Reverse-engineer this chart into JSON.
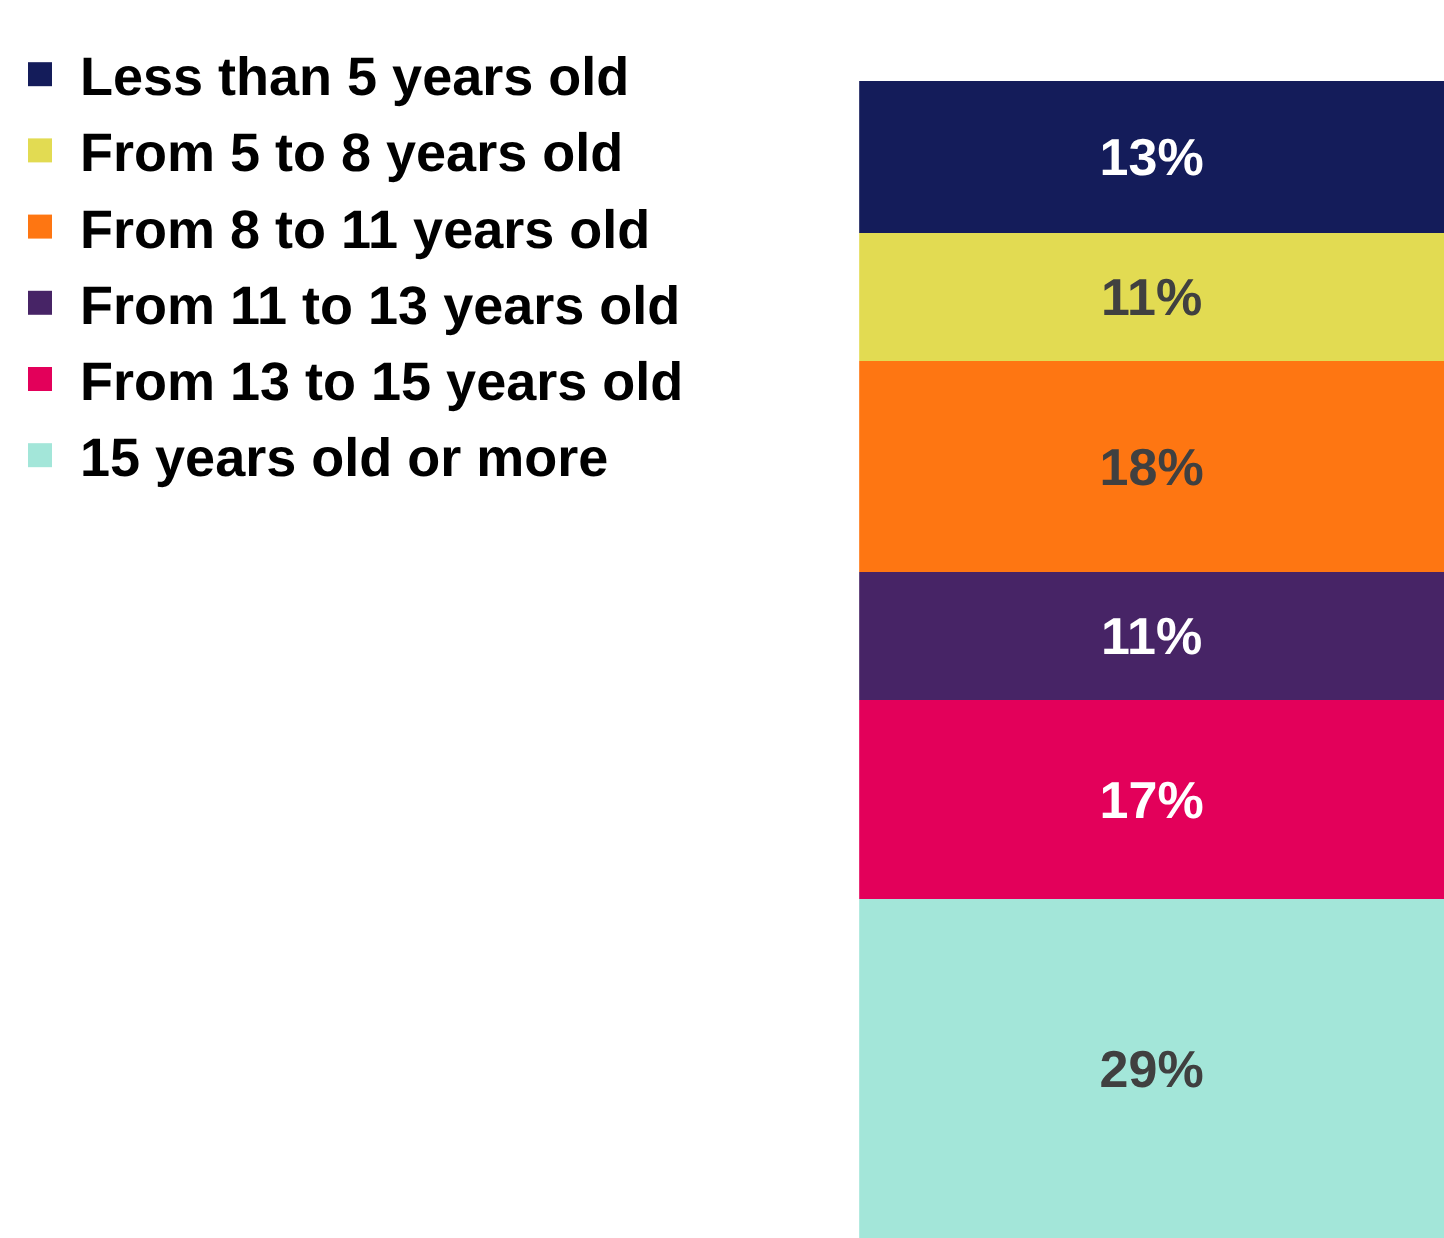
{
  "chart_data": {
    "type": "bar",
    "stacked": true,
    "categories": [
      null
    ],
    "legend": "left",
    "series": [
      {
        "name": "15 years old or more",
        "color": "#a3e6d9",
        "values": [
          29
        ],
        "value_labels": [
          "29%"
        ]
      },
      {
        "name": "From 13 to 15 years old",
        "color": "#e3005a",
        "values": [
          17
        ],
        "value_labels": [
          "17%"
        ]
      },
      {
        "name": "From 11 to 13 years old",
        "color": "#472466",
        "values": [
          11
        ],
        "value_labels": [
          "11%"
        ]
      },
      {
        "name": "From 8 to 11 years old",
        "color": "#fe7612",
        "values": [
          18
        ],
        "value_labels": [
          "18%"
        ]
      },
      {
        "name": "From 5 to 8 years old",
        "color": "#e2db52",
        "values": [
          11
        ],
        "value_labels": [
          "11%"
        ]
      },
      {
        "name": "Less than 5 years old",
        "color": "#141c5a",
        "values": [
          13
        ],
        "value_labels": [
          "13%"
        ]
      }
    ]
  }
}
